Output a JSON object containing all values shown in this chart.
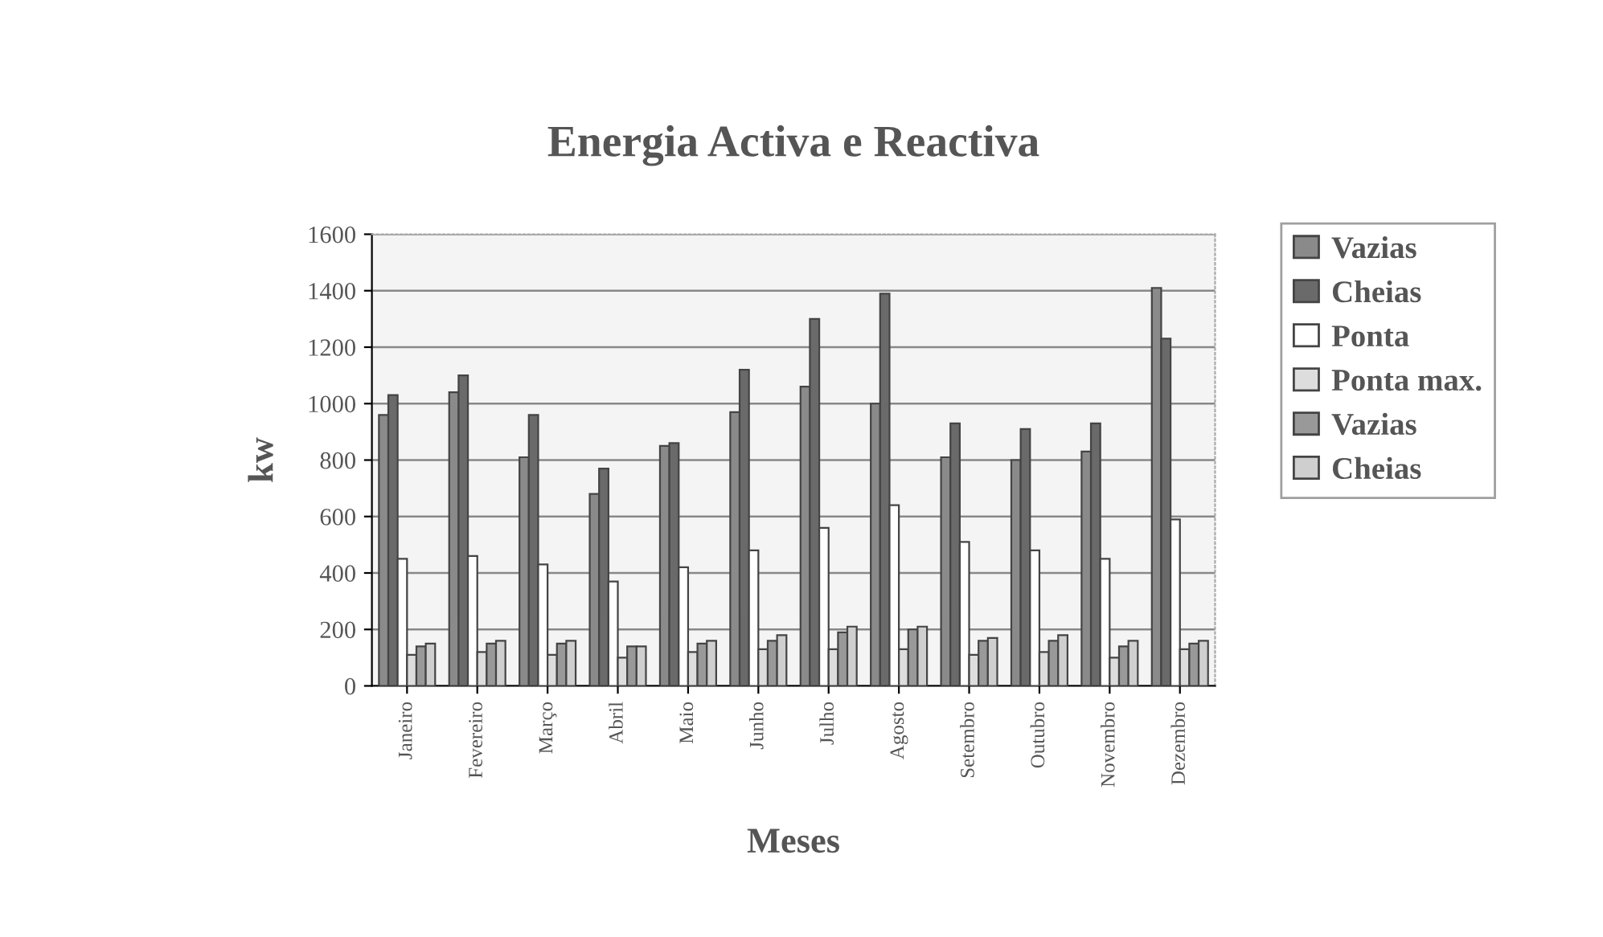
{
  "chart_data": {
    "type": "bar",
    "title": "Energia Activa e Reactiva",
    "xlabel": "Meses",
    "ylabel": "kw",
    "categories": [
      "Janeiro",
      "Fevereiro",
      "Março",
      "Abril",
      "Maio",
      "Junho",
      "Julho",
      "Agosto",
      "Setembro",
      "Outubro",
      "Novembro",
      "Dezembro"
    ],
    "series": [
      {
        "name": "Vazias",
        "color": "#8a8a8a",
        "values": [
          960,
          1040,
          810,
          680,
          850,
          970,
          1060,
          1000,
          810,
          800,
          830,
          1410
        ]
      },
      {
        "name": "Cheias",
        "color": "#6a6a6a",
        "values": [
          1030,
          1100,
          960,
          770,
          860,
          1120,
          1300,
          1390,
          930,
          910,
          930,
          1230
        ]
      },
      {
        "name": "Ponta",
        "color": "#ffffff",
        "values": [
          450,
          460,
          430,
          370,
          420,
          480,
          560,
          640,
          510,
          480,
          450,
          590
        ]
      },
      {
        "name": "Ponta max.",
        "color": "#dddddd",
        "values": [
          110,
          120,
          110,
          100,
          120,
          130,
          130,
          130,
          110,
          120,
          100,
          130
        ]
      },
      {
        "name": "Vazias",
        "color": "#999999",
        "values": [
          140,
          150,
          150,
          140,
          150,
          160,
          190,
          200,
          160,
          160,
          140,
          150
        ]
      },
      {
        "name": "Cheias",
        "color": "#cfcfcf",
        "values": [
          150,
          160,
          160,
          140,
          160,
          180,
          210,
          210,
          170,
          180,
          160,
          160
        ]
      }
    ],
    "ylim": [
      0,
      1600
    ],
    "yticks": [
      0,
      200,
      400,
      600,
      800,
      1000,
      1200,
      1400,
      1600
    ],
    "grid": "y",
    "legend": "right"
  }
}
